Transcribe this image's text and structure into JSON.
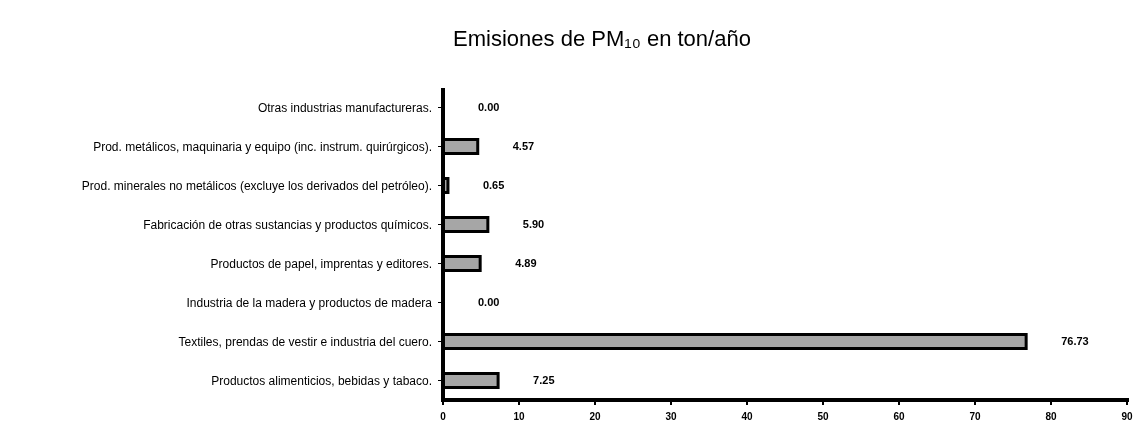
{
  "chart_data": {
    "type": "bar",
    "orientation": "horizontal",
    "title": "Emisiones de PM₁₀ en ton/año",
    "categories": [
      "Otras industrias manufactureras.",
      "Prod. metálicos, maquinaria y equipo (inc. instrum. quirúrgicos).",
      "Prod. minerales no metálicos (excluye los derivados del petróleo).",
      "Fabricación de otras sustancias y productos químicos.",
      "Productos de papel, imprentas y editores.",
      "Industria de la madera y productos de madera",
      "Textiles, prendas de vestir e industria del cuero.",
      "Productos alimenticios, bebidas y tabaco."
    ],
    "values": [
      0,
      4.57,
      0.65,
      5.9,
      4.89,
      0,
      76.73,
      7.25
    ],
    "value_labels": [
      "0.00",
      "4.57",
      "0.65",
      "5.90",
      "4.89",
      "0.00",
      "76.73",
      "7.25"
    ],
    "color": "#a6a6a6",
    "xlim": [
      0,
      90
    ],
    "xticks": [
      0,
      10,
      20,
      30,
      40,
      50,
      60,
      70,
      80,
      90
    ],
    "grid": false
  }
}
